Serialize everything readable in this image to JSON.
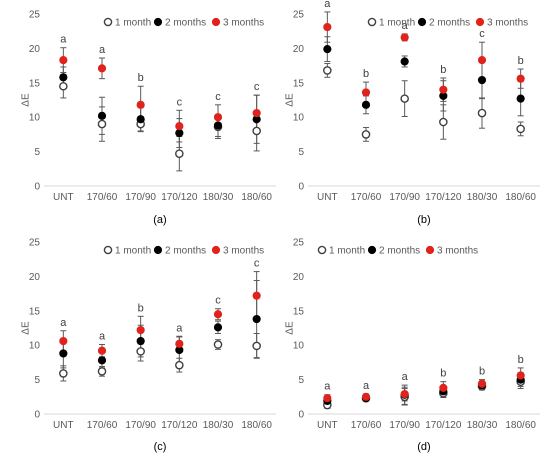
{
  "colors": {
    "month1_stroke": "#404040",
    "month2": "#000000",
    "month3": "#e0231c",
    "errorbar": "#595959",
    "axis": "#d9d9d9"
  },
  "chart_data": [
    {
      "type": "scatter",
      "panel_label": "(a)",
      "ylabel": "ΔE",
      "ylim": [
        0,
        25
      ],
      "yticks": [
        0,
        5,
        10,
        15,
        20,
        25
      ],
      "categories": [
        "UNT",
        "170/60",
        "170/90",
        "170/120",
        "180/30",
        "180/60"
      ],
      "significance": [
        "a",
        "a",
        "b",
        "c",
        "c",
        "c"
      ],
      "legend": [
        "1 month",
        "2 months",
        "3 months"
      ],
      "legend_position": "top-right",
      "series": [
        {
          "name": "1 month",
          "values": [
            14.5,
            9.0,
            9.0,
            4.7,
            8.6,
            8.0
          ],
          "errors": [
            1.7,
            2.5,
            1.1,
            2.5,
            1.7,
            2.9
          ]
        },
        {
          "name": "2 months",
          "values": [
            15.8,
            10.2,
            9.7,
            7.7,
            8.8,
            9.7
          ],
          "errors": [
            1.5,
            2.7,
            1.7,
            2.1,
            1.6,
            3.5
          ]
        },
        {
          "name": "3 months",
          "values": [
            18.3,
            17.1,
            11.8,
            8.7,
            10.0,
            10.6
          ],
          "errors": [
            1.8,
            1.5,
            2.7,
            2.3,
            1.8,
            2.6
          ]
        }
      ]
    },
    {
      "type": "scatter",
      "panel_label": "(b)",
      "ylabel": "ΔE",
      "ylim": [
        0,
        25
      ],
      "yticks": [
        0,
        5,
        10,
        15,
        20,
        25
      ],
      "categories": [
        "UNT",
        "170/60",
        "170/90",
        "170/120",
        "180/30",
        "180/60"
      ],
      "significance": [
        "a",
        "b",
        "a",
        "b",
        "c",
        "b"
      ],
      "legend": [
        "1 month",
        "2 months",
        "3 months"
      ],
      "legend_position": "top-right",
      "series": [
        {
          "name": "1 month",
          "values": [
            16.8,
            7.5,
            12.7,
            9.3,
            10.6,
            8.3
          ],
          "errors": [
            1.0,
            1.0,
            2.6,
            2.5,
            2.2,
            1.0
          ]
        },
        {
          "name": "2 months",
          "values": [
            19.9,
            11.8,
            18.1,
            13.1,
            15.4,
            12.7
          ],
          "errors": [
            1.8,
            1.3,
            0.8,
            2.2,
            2.7,
            2.5
          ]
        },
        {
          "name": "3 months",
          "values": [
            23.1,
            13.6,
            21.6,
            14.0,
            18.3,
            15.6
          ],
          "errors": [
            2.2,
            1.5,
            0.5,
            1.7,
            2.6,
            1.4
          ]
        }
      ]
    },
    {
      "type": "scatter",
      "panel_label": "(c)",
      "ylabel": "ΔE",
      "ylim": [
        0,
        25
      ],
      "yticks": [
        0,
        5,
        10,
        15,
        20,
        25
      ],
      "categories": [
        "UNT",
        "170/60",
        "170/90",
        "170/120",
        "180/30",
        "180/60"
      ],
      "significance": [
        "a",
        "a",
        "b",
        "a",
        "c",
        "c"
      ],
      "legend": [
        "1 month",
        "2 months",
        "3 months"
      ],
      "legend_position": "top-right",
      "series": [
        {
          "name": "1 month",
          "values": [
            5.9,
            6.2,
            9.1,
            7.1,
            10.1,
            9.9
          ],
          "errors": [
            1.1,
            0.7,
            1.4,
            1.0,
            0.7,
            1.8
          ]
        },
        {
          "name": "2 months",
          "values": [
            8.8,
            7.8,
            10.6,
            9.3,
            12.6,
            13.8
          ],
          "errors": [
            2.1,
            1.1,
            2.3,
            1.9,
            0.9,
            5.6
          ]
        },
        {
          "name": "3 months",
          "values": [
            10.6,
            9.2,
            12.2,
            10.2,
            14.5,
            17.2
          ],
          "errors": [
            1.5,
            0.9,
            2.0,
            1.1,
            0.8,
            3.5
          ]
        }
      ]
    },
    {
      "type": "scatter",
      "panel_label": "(d)",
      "ylabel": "ΔE",
      "ylim": [
        0,
        25
      ],
      "yticks": [
        0,
        5,
        10,
        15,
        20,
        25
      ],
      "categories": [
        "UNT",
        "170/60",
        "170/90",
        "170/120",
        "180/30",
        "180/60"
      ],
      "significance": [
        "a",
        "a",
        "a",
        "b",
        "b",
        "b"
      ],
      "legend": [
        "1 month",
        "2 months",
        "3 months"
      ],
      "legend_position": "top-left",
      "series": [
        {
          "name": "1 month",
          "values": [
            1.3,
            2.3,
            2.5,
            3.0,
            4.0,
            4.7
          ],
          "errors": [
            0.5,
            0.4,
            1.2,
            0.6,
            0.5,
            1.0
          ]
        },
        {
          "name": "2 months",
          "values": [
            1.9,
            2.3,
            2.8,
            3.3,
            4.2,
            5.0
          ],
          "errors": [
            0.5,
            0.4,
            1.4,
            0.6,
            0.6,
            1.0
          ]
        },
        {
          "name": "3 months",
          "values": [
            2.3,
            2.5,
            2.9,
            3.8,
            4.4,
            5.6
          ],
          "errors": [
            0.5,
            0.4,
            1.0,
            0.9,
            0.6,
            1.1
          ]
        }
      ]
    }
  ]
}
